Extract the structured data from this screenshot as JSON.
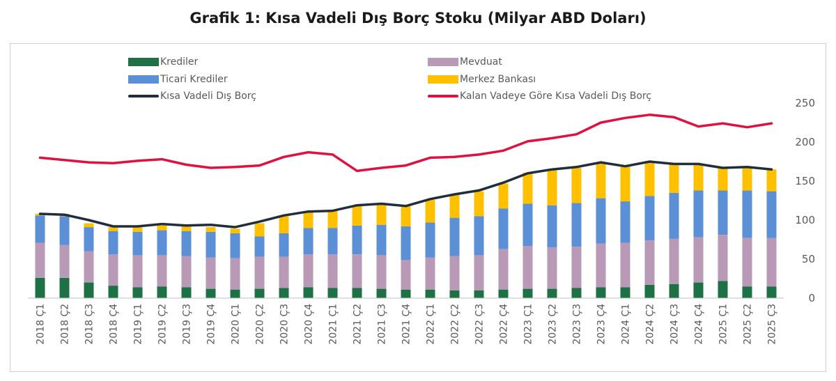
{
  "chart_data": {
    "type": "bar",
    "title": "Grafik 1: Kısa Vadeli Dış Borç Stoku (Milyar ABD Doları)",
    "categories": [
      "2018 Ç1",
      "2018 Ç2",
      "2018 Ç3",
      "2018 Ç4",
      "2019 Ç1",
      "2019 Ç2",
      "2019 Ç3",
      "2019 Ç4",
      "2020 Ç1",
      "2020 Ç2",
      "2020 Ç3",
      "2020 Ç4",
      "2021 Ç1",
      "2021 Ç2",
      "2021 Ç3",
      "2021 Ç4",
      "2022 Ç1",
      "2022 Ç2",
      "2022 Ç3",
      "2022 Ç4",
      "2023 Ç1",
      "2023 Ç2",
      "2023 Ç3",
      "2023 Ç4",
      "2024 Ç1",
      "2024 Ç2",
      "2024 Ç3",
      "2024 Ç4",
      "2025 Ç1",
      "2025 Ç2",
      "2025 Ç3"
    ],
    "ylim": [
      0,
      250
    ],
    "yticks": [
      0,
      50,
      100,
      150,
      200,
      250
    ],
    "stacked": true,
    "series": [
      {
        "name": "Krediler",
        "kind": "bar",
        "color": "#1e7145",
        "values": [
          26,
          26,
          20,
          16,
          14,
          15,
          14,
          12,
          11,
          12,
          13,
          14,
          13,
          13,
          12,
          11,
          11,
          10,
          10,
          11,
          12,
          12,
          13,
          14,
          14,
          17,
          18,
          20,
          22,
          15,
          15
        ]
      },
      {
        "name": "Mevduat",
        "kind": "bar",
        "color": "#b89ab7",
        "values": [
          45,
          42,
          40,
          40,
          41,
          40,
          40,
          40,
          40,
          41,
          40,
          42,
          43,
          43,
          43,
          38,
          41,
          44,
          45,
          52,
          55,
          53,
          53,
          56,
          57,
          57,
          58,
          58,
          59,
          62,
          62
        ]
      },
      {
        "name": "Ticari Krediler",
        "kind": "bar",
        "color": "#5b8fd6",
        "values": [
          35,
          37,
          31,
          30,
          30,
          32,
          32,
          33,
          32,
          26,
          30,
          34,
          34,
          37,
          39,
          43,
          45,
          49,
          50,
          52,
          54,
          54,
          56,
          58,
          53,
          57,
          59,
          60,
          57,
          61,
          60
        ]
      },
      {
        "name": "Merkez Bankası",
        "kind": "bar",
        "color": "#ffc000",
        "values": [
          2,
          3,
          5,
          5,
          6,
          6,
          6,
          6,
          6,
          17,
          22,
          20,
          22,
          25,
          26,
          26,
          29,
          30,
          32,
          32,
          40,
          46,
          45,
          46,
          46,
          44,
          37,
          34,
          29,
          30,
          28
        ]
      },
      {
        "name": "Kısa Vadeli Dış Borç",
        "kind": "line",
        "color": "#1f2d3d",
        "values": [
          108,
          107,
          100,
          92,
          92,
          95,
          93,
          94,
          91,
          98,
          106,
          111,
          112,
          119,
          121,
          118,
          127,
          133,
          138,
          148,
          160,
          165,
          168,
          174,
          169,
          175,
          172,
          172,
          167,
          168,
          165
        ]
      },
      {
        "name": "Kalan Vadeye Göre Kısa Vadeli Dış Borç",
        "kind": "line",
        "color": "#e0103f",
        "values": [
          180,
          177,
          174,
          173,
          176,
          178,
          171,
          167,
          168,
          170,
          181,
          187,
          184,
          163,
          167,
          170,
          180,
          181,
          184,
          189,
          201,
          205,
          210,
          225,
          231,
          235,
          232,
          220,
          224,
          219,
          224
        ]
      }
    ],
    "legend_position": "top"
  }
}
